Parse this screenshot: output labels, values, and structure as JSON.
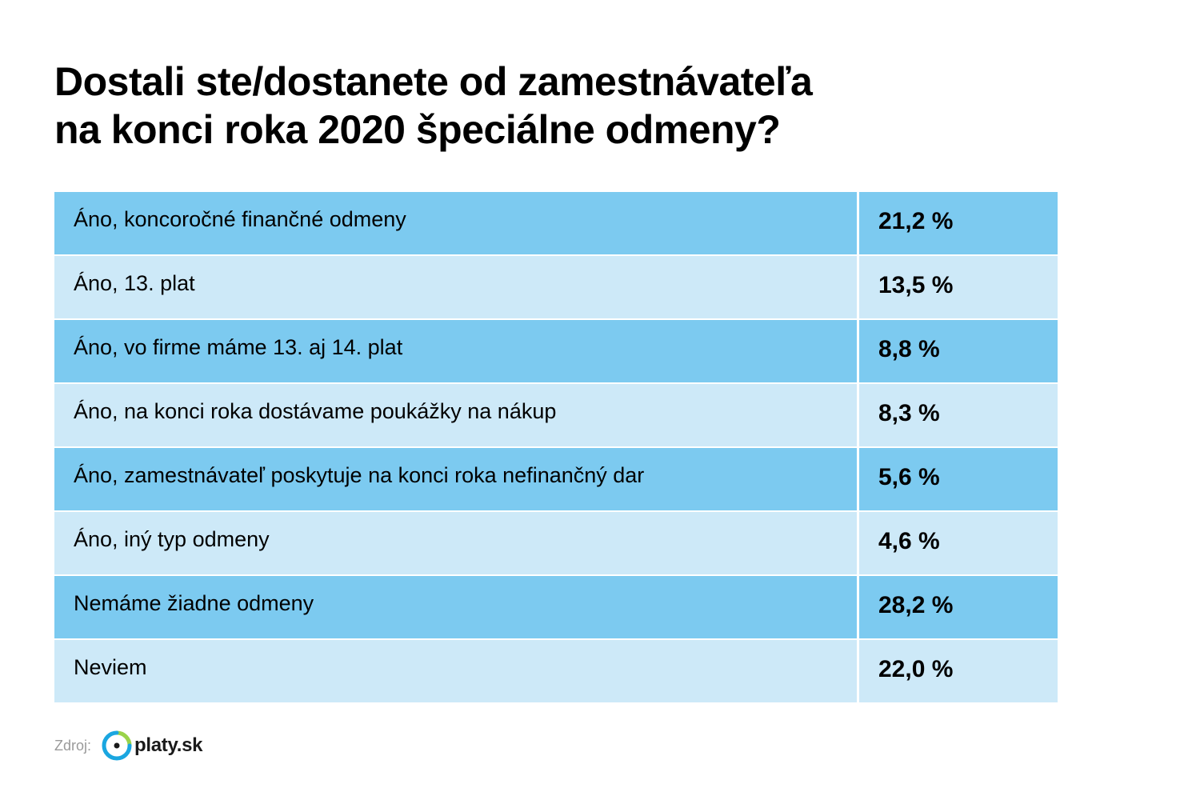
{
  "title_lines": [
    "Dostali ste/dostanete od zamestnávateľa",
    "na konci roka 2020 špeciálne odmeny?"
  ],
  "colors": {
    "row_dark": "#7ccaf0",
    "row_light": "#cde9f8",
    "logo_green": "#9ad34a",
    "logo_blue": "#1aa6e0"
  },
  "chart_data": {
    "type": "table",
    "rows": [
      {
        "label": "Áno, koncoročné finančné odmeny",
        "value_text": "21,2 %",
        "value": 21.2
      },
      {
        "label": "Áno, 13. plat",
        "value_text": "13,5 %",
        "value": 13.5
      },
      {
        "label": "Áno, vo firme máme 13. aj 14. plat",
        "value_text": "8,8 %",
        "value": 8.8
      },
      {
        "label": "Áno, na konci roka dostávame poukážky na nákup",
        "value_text": "8,3 %",
        "value": 8.3
      },
      {
        "label": "Áno, zamestnávateľ poskytuje na konci roka nefinančný dar",
        "value_text": "5,6 %",
        "value": 5.6
      },
      {
        "label": "Áno, iný typ odmeny",
        "value_text": "4,6 %",
        "value": 4.6
      },
      {
        "label": "Nemáme žiadne odmeny",
        "value_text": "28,2 %",
        "value": 28.2
      },
      {
        "label": "Neviem",
        "value_text": "22,0 %",
        "value": 22.0
      }
    ]
  },
  "source": {
    "label": "Zdroj:",
    "logo_text": "platy.sk"
  }
}
